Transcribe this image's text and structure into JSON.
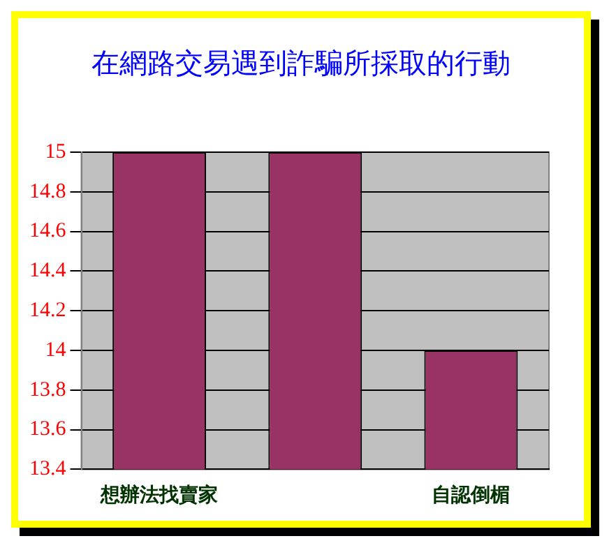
{
  "chart_data": {
    "type": "bar",
    "title": "在網路交易遇到詐騙所採取的行動",
    "categories": [
      "想辦法找賣家",
      null,
      "自認倒楣"
    ],
    "values": [
      15,
      15,
      14
    ],
    "color": "#993366",
    "ylim": [
      13.4,
      15
    ],
    "yticks": [
      13.4,
      13.6,
      13.8,
      14,
      14.2,
      14.4,
      14.6,
      14.8,
      15
    ],
    "grid": "y",
    "legend": false
  }
}
